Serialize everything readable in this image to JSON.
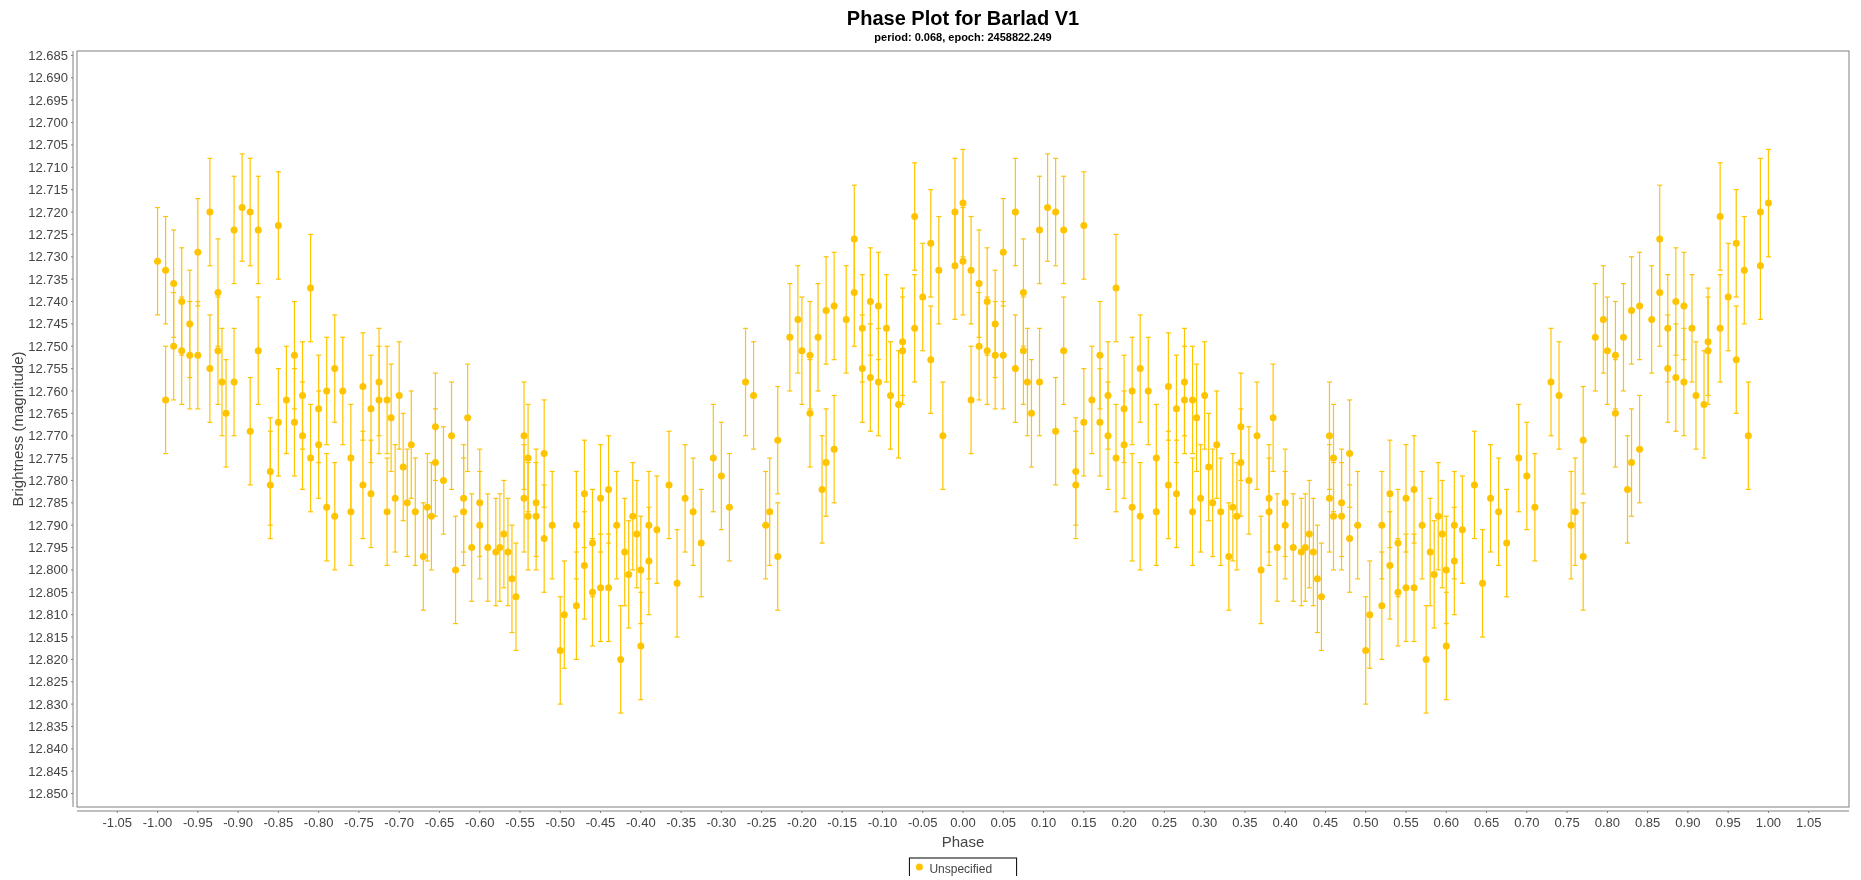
{
  "chart_data": {
    "type": "scatter",
    "title": "Phase Plot for Barlad V1",
    "subtitle": "period: 0.068, epoch: 2458822.249",
    "xlabel": "Phase",
    "ylabel": "Brightness (magnitude)",
    "xlim": [
      -1.1,
      1.1
    ],
    "ylim": [
      12.853,
      12.684
    ],
    "xticks": [
      {
        "value": -1.05,
        "label": "-1.05"
      },
      {
        "value": -1,
        "label": "-1.00"
      },
      {
        "value": -0.95,
        "label": "-0.95"
      },
      {
        "value": -0.9,
        "label": "-0.90"
      },
      {
        "value": -0.85,
        "label": "-0.85"
      },
      {
        "value": -0.8,
        "label": "-0.80"
      },
      {
        "value": -0.75,
        "label": "-0.75"
      },
      {
        "value": -0.7,
        "label": "-0.70"
      },
      {
        "value": -0.65,
        "label": "-0.65"
      },
      {
        "value": -0.6,
        "label": "-0.60"
      },
      {
        "value": -0.55,
        "label": "-0.55"
      },
      {
        "value": -0.5,
        "label": "-0.50"
      },
      {
        "value": -0.45,
        "label": "-0.45"
      },
      {
        "value": -0.4,
        "label": "-0.40"
      },
      {
        "value": -0.35,
        "label": "-0.35"
      },
      {
        "value": -0.3,
        "label": "-0.30"
      },
      {
        "value": -0.25,
        "label": "-0.25"
      },
      {
        "value": -0.2,
        "label": "-0.20"
      },
      {
        "value": -0.15,
        "label": "-0.15"
      },
      {
        "value": -0.1,
        "label": "-0.10"
      },
      {
        "value": -0.05,
        "label": "-0.05"
      },
      {
        "value": 0,
        "label": "0.00"
      },
      {
        "value": 0.05,
        "label": "0.05"
      },
      {
        "value": 0.1,
        "label": "0.10"
      },
      {
        "value": 0.15,
        "label": "0.15"
      },
      {
        "value": 0.2,
        "label": "0.20"
      },
      {
        "value": 0.25,
        "label": "0.25"
      },
      {
        "value": 0.3,
        "label": "0.30"
      },
      {
        "value": 0.35,
        "label": "0.35"
      },
      {
        "value": 0.4,
        "label": "0.40"
      },
      {
        "value": 0.45,
        "label": "0.45"
      },
      {
        "value": 0.5,
        "label": "0.50"
      },
      {
        "value": 0.55,
        "label": "0.55"
      },
      {
        "value": 0.6,
        "label": "0.60"
      },
      {
        "value": 0.65,
        "label": "0.65"
      },
      {
        "value": 0.7,
        "label": "0.70"
      },
      {
        "value": 0.75,
        "label": "0.75"
      },
      {
        "value": 0.8,
        "label": "0.80"
      },
      {
        "value": 0.85,
        "label": "0.85"
      },
      {
        "value": 0.9,
        "label": "0.90"
      },
      {
        "value": 0.95,
        "label": "0.95"
      },
      {
        "value": 1,
        "label": "1.00"
      },
      {
        "value": 1.05,
        "label": "1.05"
      }
    ],
    "yticks": [
      12.685,
      {
        "value": 12.69,
        "label": "12.690"
      },
      12.695,
      {
        "value": 12.7,
        "label": "12.700"
      },
      12.705,
      {
        "value": 12.71,
        "label": "12.710"
      },
      12.715,
      {
        "value": 12.72,
        "label": "12.720"
      },
      12.725,
      {
        "value": 12.73,
        "label": "12.730"
      },
      12.735,
      {
        "value": 12.74,
        "label": "12.740"
      },
      12.745,
      {
        "value": 12.75,
        "label": "12.750"
      },
      12.755,
      {
        "value": 12.76,
        "label": "12.760"
      },
      12.765,
      {
        "value": 12.77,
        "label": "12.770"
      },
      12.775,
      {
        "value": 12.78,
        "label": "12.780"
      },
      12.785,
      {
        "value": 12.79,
        "label": "12.790"
      },
      12.795,
      {
        "value": 12.8,
        "label": "12.800"
      },
      12.805,
      {
        "value": 12.81,
        "label": "12.810"
      },
      12.815,
      {
        "value": 12.82,
        "label": "12.820"
      },
      12.825,
      {
        "value": 12.83,
        "label": "12.830"
      },
      12.835,
      {
        "value": 12.84,
        "label": "12.840"
      },
      12.845,
      {
        "value": 12.85,
        "label": "12.850"
      }
    ],
    "legend": "bottom",
    "marker": "circle",
    "series": [
      {
        "name": "Unspecified",
        "color": "#ffc400",
        "x": [
          -1.0,
          -0.99,
          -0.99,
          -0.98,
          -0.98,
          -0.97,
          -0.97,
          -0.96,
          -0.96,
          -0.95,
          -0.95,
          -0.935,
          -0.935,
          -0.925,
          -0.925,
          -0.92,
          -0.915,
          -0.905,
          -0.905,
          -0.895,
          -0.885,
          -0.885,
          -0.875,
          -0.875,
          -0.86,
          -0.86,
          -0.85,
          -0.85,
          -0.84,
          -0.83,
          -0.83,
          -0.82,
          -0.82,
          -0.81,
          -0.81,
          -0.8,
          -0.8,
          -0.79,
          -0.79,
          -0.78,
          -0.78,
          -0.77,
          -0.76,
          -0.76,
          -0.745,
          -0.745,
          -0.735,
          -0.735,
          -0.725,
          -0.725,
          -0.715,
          -0.715,
          -0.71,
          -0.705,
          -0.7,
          -0.695,
          -0.69,
          -0.685,
          -0.68,
          -0.67,
          -0.665,
          -0.66,
          -0.655,
          -0.655,
          -0.645,
          -0.635,
          -0.63,
          -0.62,
          -0.62,
          -0.615,
          -0.61,
          -0.6,
          -0.6,
          -0.59,
          -0.58,
          -0.575,
          -0.57,
          -0.565,
          -0.56,
          -0.555,
          -0.545,
          -0.545,
          -0.54,
          -0.54,
          -0.53,
          -0.53,
          -0.52,
          -0.52,
          -0.51,
          -0.5,
          -0.495,
          -0.48,
          -0.48,
          -0.47,
          -0.47,
          -0.46,
          -0.46,
          -0.45,
          -0.45,
          -0.44,
          -0.44,
          -0.43,
          -0.425,
          -0.42,
          -0.415,
          -0.41,
          -0.405,
          -0.4,
          -0.4,
          -0.39,
          -0.39,
          -0.38,
          -0.365,
          -0.355,
          -0.345,
          -0.335,
          -0.325,
          -0.31,
          -0.3,
          -0.29,
          -0.27,
          -0.26,
          -0.245,
          -0.24,
          -0.23,
          -0.23,
          -0.215,
          -0.205,
          -0.2,
          -0.19,
          -0.19,
          -0.18,
          -0.175,
          -0.17,
          -0.17,
          -0.16,
          -0.16,
          -0.145,
          -0.135,
          -0.135,
          -0.125,
          -0.125,
          -0.115,
          -0.115,
          -0.105,
          -0.105,
          -0.095,
          -0.09,
          -0.08,
          -0.075,
          -0.075,
          -0.06,
          -0.06,
          -0.05,
          -0.04,
          -0.04,
          -0.03,
          -0.025,
          -0.01,
          -0.01,
          0.0,
          0.0,
          0.01,
          0.01,
          0.02,
          0.02,
          0.03,
          0.03,
          0.04,
          0.04,
          0.05,
          0.05,
          0.065,
          0.065,
          0.075,
          0.075,
          0.08,
          0.085,
          0.095,
          0.095,
          0.105,
          0.115,
          0.115,
          0.125,
          0.125,
          0.14,
          0.14,
          0.15,
          0.15,
          0.16,
          0.17,
          0.17,
          0.18,
          0.18,
          0.19,
          0.19,
          0.2,
          0.2,
          0.21,
          0.21,
          0.22,
          0.22,
          0.23,
          0.24,
          0.24,
          0.255,
          0.255,
          0.265,
          0.265,
          0.275,
          0.275,
          0.285,
          0.285,
          0.29,
          0.295,
          0.3,
          0.305,
          0.31,
          0.315,
          0.32,
          0.33,
          0.335,
          0.34,
          0.345,
          0.345,
          0.355,
          0.365,
          0.37,
          0.38,
          0.38,
          0.385,
          0.39,
          0.4,
          0.4,
          0.41,
          0.42,
          0.425,
          0.43,
          0.435,
          0.44,
          0.445,
          0.455,
          0.455,
          0.46,
          0.46,
          0.47,
          0.47,
          0.48,
          0.48,
          0.49,
          0.5,
          0.505,
          0.52,
          0.52,
          0.53,
          0.53,
          0.54,
          0.54,
          0.55,
          0.55,
          0.56,
          0.56,
          0.57,
          0.575,
          0.58,
          0.585,
          0.59,
          0.595,
          0.6,
          0.6,
          0.61,
          0.61,
          0.62,
          0.635,
          0.645,
          0.655,
          0.665,
          0.675,
          0.69,
          0.7,
          0.71,
          0.73,
          0.74,
          0.755,
          0.76,
          0.77,
          0.77,
          0.785,
          0.795,
          0.8,
          0.81,
          0.81,
          0.82,
          0.825,
          0.83,
          0.83,
          0.84,
          0.84,
          0.855,
          0.865,
          0.865,
          0.875,
          0.875,
          0.885,
          0.885,
          0.895,
          0.895,
          0.905,
          0.91,
          0.92,
          0.925,
          0.925,
          0.94,
          0.94,
          0.95,
          0.96,
          0.96,
          0.97,
          0.975,
          0.99,
          0.99,
          1.0
        ],
        "values": [
          12.731,
          12.762,
          12.733,
          12.75,
          12.736,
          12.74,
          12.751,
          12.745,
          12.752,
          12.729,
          12.752,
          12.72,
          12.755,
          12.738,
          12.751,
          12.758,
          12.765,
          12.724,
          12.758,
          12.719,
          12.72,
          12.769,
          12.724,
          12.751,
          12.778,
          12.781,
          12.723,
          12.767,
          12.762,
          12.752,
          12.767,
          12.761,
          12.77,
          12.737,
          12.775,
          12.764,
          12.772,
          12.76,
          12.786,
          12.755,
          12.788,
          12.76,
          12.775,
          12.787,
          12.759,
          12.781,
          12.764,
          12.783,
          12.758,
          12.762,
          12.762,
          12.787,
          12.766,
          12.784,
          12.761,
          12.777,
          12.785,
          12.772,
          12.787,
          12.797,
          12.786,
          12.788,
          12.768,
          12.776,
          12.78,
          12.77,
          12.8,
          12.784,
          12.787,
          12.766,
          12.795,
          12.785,
          12.79,
          12.795,
          12.796,
          12.795,
          12.792,
          12.796,
          12.802,
          12.806,
          12.77,
          12.784,
          12.788,
          12.775,
          12.785,
          12.788,
          12.774,
          12.793,
          12.79,
          12.818,
          12.81,
          12.79,
          12.808,
          12.783,
          12.799,
          12.794,
          12.805,
          12.784,
          12.804,
          12.782,
          12.804,
          12.79,
          12.82,
          12.796,
          12.801,
          12.788,
          12.792,
          12.8,
          12.817,
          12.79,
          12.798,
          12.791,
          12.781,
          12.803,
          12.784,
          12.787,
          12.794,
          12.775,
          12.779,
          12.786,
          12.758,
          12.761,
          12.79,
          12.787,
          12.797,
          12.771,
          12.748,
          12.744,
          12.751,
          12.765,
          12.752,
          12.748,
          12.782,
          12.742,
          12.776,
          12.741,
          12.773,
          12.744,
          12.726,
          12.738,
          12.746,
          12.755,
          12.74,
          12.757,
          12.741,
          12.758,
          12.746,
          12.761,
          12.763,
          12.749,
          12.751,
          12.721,
          12.746,
          12.739,
          12.727,
          12.753,
          12.733,
          12.77,
          12.732,
          12.72,
          12.718,
          12.731,
          12.762,
          12.733,
          12.75,
          12.736,
          12.74,
          12.751,
          12.745,
          12.752,
          12.729,
          12.752,
          12.72,
          12.755,
          12.738,
          12.751,
          12.758,
          12.765,
          12.724,
          12.758,
          12.719,
          12.72,
          12.769,
          12.724,
          12.751,
          12.778,
          12.781,
          12.723,
          12.767,
          12.762,
          12.752,
          12.767,
          12.761,
          12.77,
          12.737,
          12.775,
          12.764,
          12.772,
          12.76,
          12.786,
          12.755,
          12.788,
          12.76,
          12.775,
          12.787,
          12.759,
          12.781,
          12.764,
          12.783,
          12.758,
          12.762,
          12.762,
          12.787,
          12.766,
          12.784,
          12.761,
          12.777,
          12.785,
          12.772,
          12.787,
          12.797,
          12.786,
          12.788,
          12.768,
          12.776,
          12.78,
          12.77,
          12.8,
          12.784,
          12.787,
          12.766,
          12.795,
          12.785,
          12.79,
          12.795,
          12.796,
          12.795,
          12.792,
          12.796,
          12.802,
          12.806,
          12.77,
          12.784,
          12.788,
          12.775,
          12.785,
          12.788,
          12.774,
          12.793,
          12.79,
          12.818,
          12.81,
          12.79,
          12.808,
          12.783,
          12.799,
          12.794,
          12.805,
          12.784,
          12.804,
          12.782,
          12.804,
          12.79,
          12.82,
          12.796,
          12.801,
          12.788,
          12.792,
          12.8,
          12.817,
          12.79,
          12.798,
          12.791,
          12.781,
          12.803,
          12.784,
          12.787,
          12.794,
          12.775,
          12.779,
          12.786,
          12.758,
          12.761,
          12.79,
          12.787,
          12.797,
          12.771,
          12.748,
          12.744,
          12.751,
          12.765,
          12.752,
          12.748,
          12.782,
          12.742,
          12.776,
          12.741,
          12.773,
          12.744,
          12.726,
          12.738,
          12.746,
          12.755,
          12.74,
          12.757,
          12.741,
          12.758,
          12.746,
          12.761,
          12.763,
          12.749,
          12.751,
          12.721,
          12.746,
          12.739,
          12.727,
          12.753,
          12.733,
          12.77,
          12.732,
          12.72,
          12.718
        ],
        "errors": [
          0.012,
          0.012,
          0.012,
          0.012,
          0.012,
          0.012,
          0.012,
          0.012,
          0.012,
          0.012,
          0.012,
          0.012,
          0.012,
          0.012,
          0.012,
          0.012,
          0.012,
          0.012,
          0.012,
          0.012,
          0.012,
          0.012,
          0.012,
          0.012,
          0.012,
          0.012,
          0.012,
          0.012,
          0.012,
          0.012,
          0.012,
          0.012,
          0.012,
          0.012,
          0.012,
          0.012,
          0.012,
          0.012,
          0.012,
          0.012,
          0.012,
          0.012,
          0.012,
          0.012,
          0.012,
          0.012,
          0.012,
          0.012,
          0.012,
          0.012,
          0.012,
          0.012,
          0.012,
          0.012,
          0.012,
          0.012,
          0.012,
          0.012,
          0.012,
          0.012,
          0.012,
          0.012,
          0.012,
          0.012,
          0.012,
          0.012,
          0.012,
          0.012,
          0.012,
          0.012,
          0.012,
          0.012,
          0.012,
          0.012,
          0.012,
          0.012,
          0.012,
          0.012,
          0.012,
          0.012,
          0.012,
          0.012,
          0.012,
          0.012,
          0.012,
          0.012,
          0.012,
          0.012,
          0.012,
          0.012,
          0.012,
          0.012,
          0.012,
          0.012,
          0.012,
          0.012,
          0.012,
          0.012,
          0.012,
          0.012,
          0.012,
          0.012,
          0.012,
          0.012,
          0.012,
          0.012,
          0.012,
          0.012,
          0.012,
          0.012,
          0.012,
          0.012,
          0.012,
          0.012,
          0.012,
          0.012,
          0.012,
          0.012,
          0.012,
          0.012,
          0.012,
          0.012,
          0.012,
          0.012,
          0.012,
          0.012,
          0.012,
          0.012,
          0.012,
          0.012,
          0.012,
          0.012,
          0.012,
          0.012,
          0.012,
          0.012,
          0.012,
          0.012,
          0.012,
          0.012,
          0.012,
          0.012,
          0.012,
          0.012,
          0.012,
          0.012,
          0.012,
          0.012,
          0.012,
          0.012,
          0.012,
          0.012,
          0.012,
          0.012,
          0.012,
          0.012,
          0.012,
          0.012,
          0.012,
          0.012,
          0.012,
          0.012,
          0.012,
          0.012,
          0.012,
          0.012,
          0.012,
          0.012,
          0.012,
          0.012,
          0.012,
          0.012,
          0.012,
          0.012,
          0.012,
          0.012,
          0.012,
          0.012,
          0.012,
          0.012,
          0.012,
          0.012,
          0.012,
          0.012,
          0.012,
          0.012,
          0.012,
          0.012,
          0.012,
          0.012,
          0.012,
          0.012,
          0.012,
          0.012,
          0.012,
          0.012,
          0.012,
          0.012,
          0.012,
          0.012,
          0.012,
          0.012,
          0.012,
          0.012,
          0.012,
          0.012,
          0.012,
          0.012,
          0.012,
          0.012,
          0.012,
          0.012,
          0.012,
          0.012,
          0.012,
          0.012,
          0.012,
          0.012,
          0.012,
          0.012,
          0.012,
          0.012,
          0.012,
          0.012,
          0.012,
          0.012,
          0.012,
          0.012,
          0.012,
          0.012,
          0.012,
          0.012,
          0.012,
          0.012,
          0.012,
          0.012,
          0.012,
          0.012,
          0.012,
          0.012,
          0.012,
          0.012,
          0.012,
          0.012,
          0.012,
          0.012,
          0.012,
          0.012,
          0.012,
          0.012,
          0.012,
          0.012,
          0.012,
          0.012,
          0.012,
          0.012,
          0.012,
          0.012,
          0.012,
          0.012,
          0.012,
          0.012,
          0.012,
          0.012,
          0.012,
          0.012,
          0.012,
          0.012,
          0.012,
          0.012,
          0.012,
          0.012,
          0.012,
          0.012,
          0.012,
          0.012,
          0.012,
          0.012,
          0.012,
          0.012,
          0.012,
          0.012,
          0.012,
          0.012,
          0.012,
          0.012,
          0.012,
          0.012,
          0.012,
          0.012,
          0.012,
          0.012,
          0.012,
          0.012,
          0.012,
          0.012,
          0.012,
          0.012,
          0.012,
          0.012,
          0.012,
          0.012,
          0.012,
          0.012,
          0.012,
          0.012,
          0.012,
          0.012,
          0.012,
          0.012,
          0.012,
          0.012,
          0.012,
          0.012,
          0.012,
          0.012,
          0.012,
          0.012,
          0.012,
          0.012,
          0.012,
          0.012
        ]
      }
    ]
  }
}
